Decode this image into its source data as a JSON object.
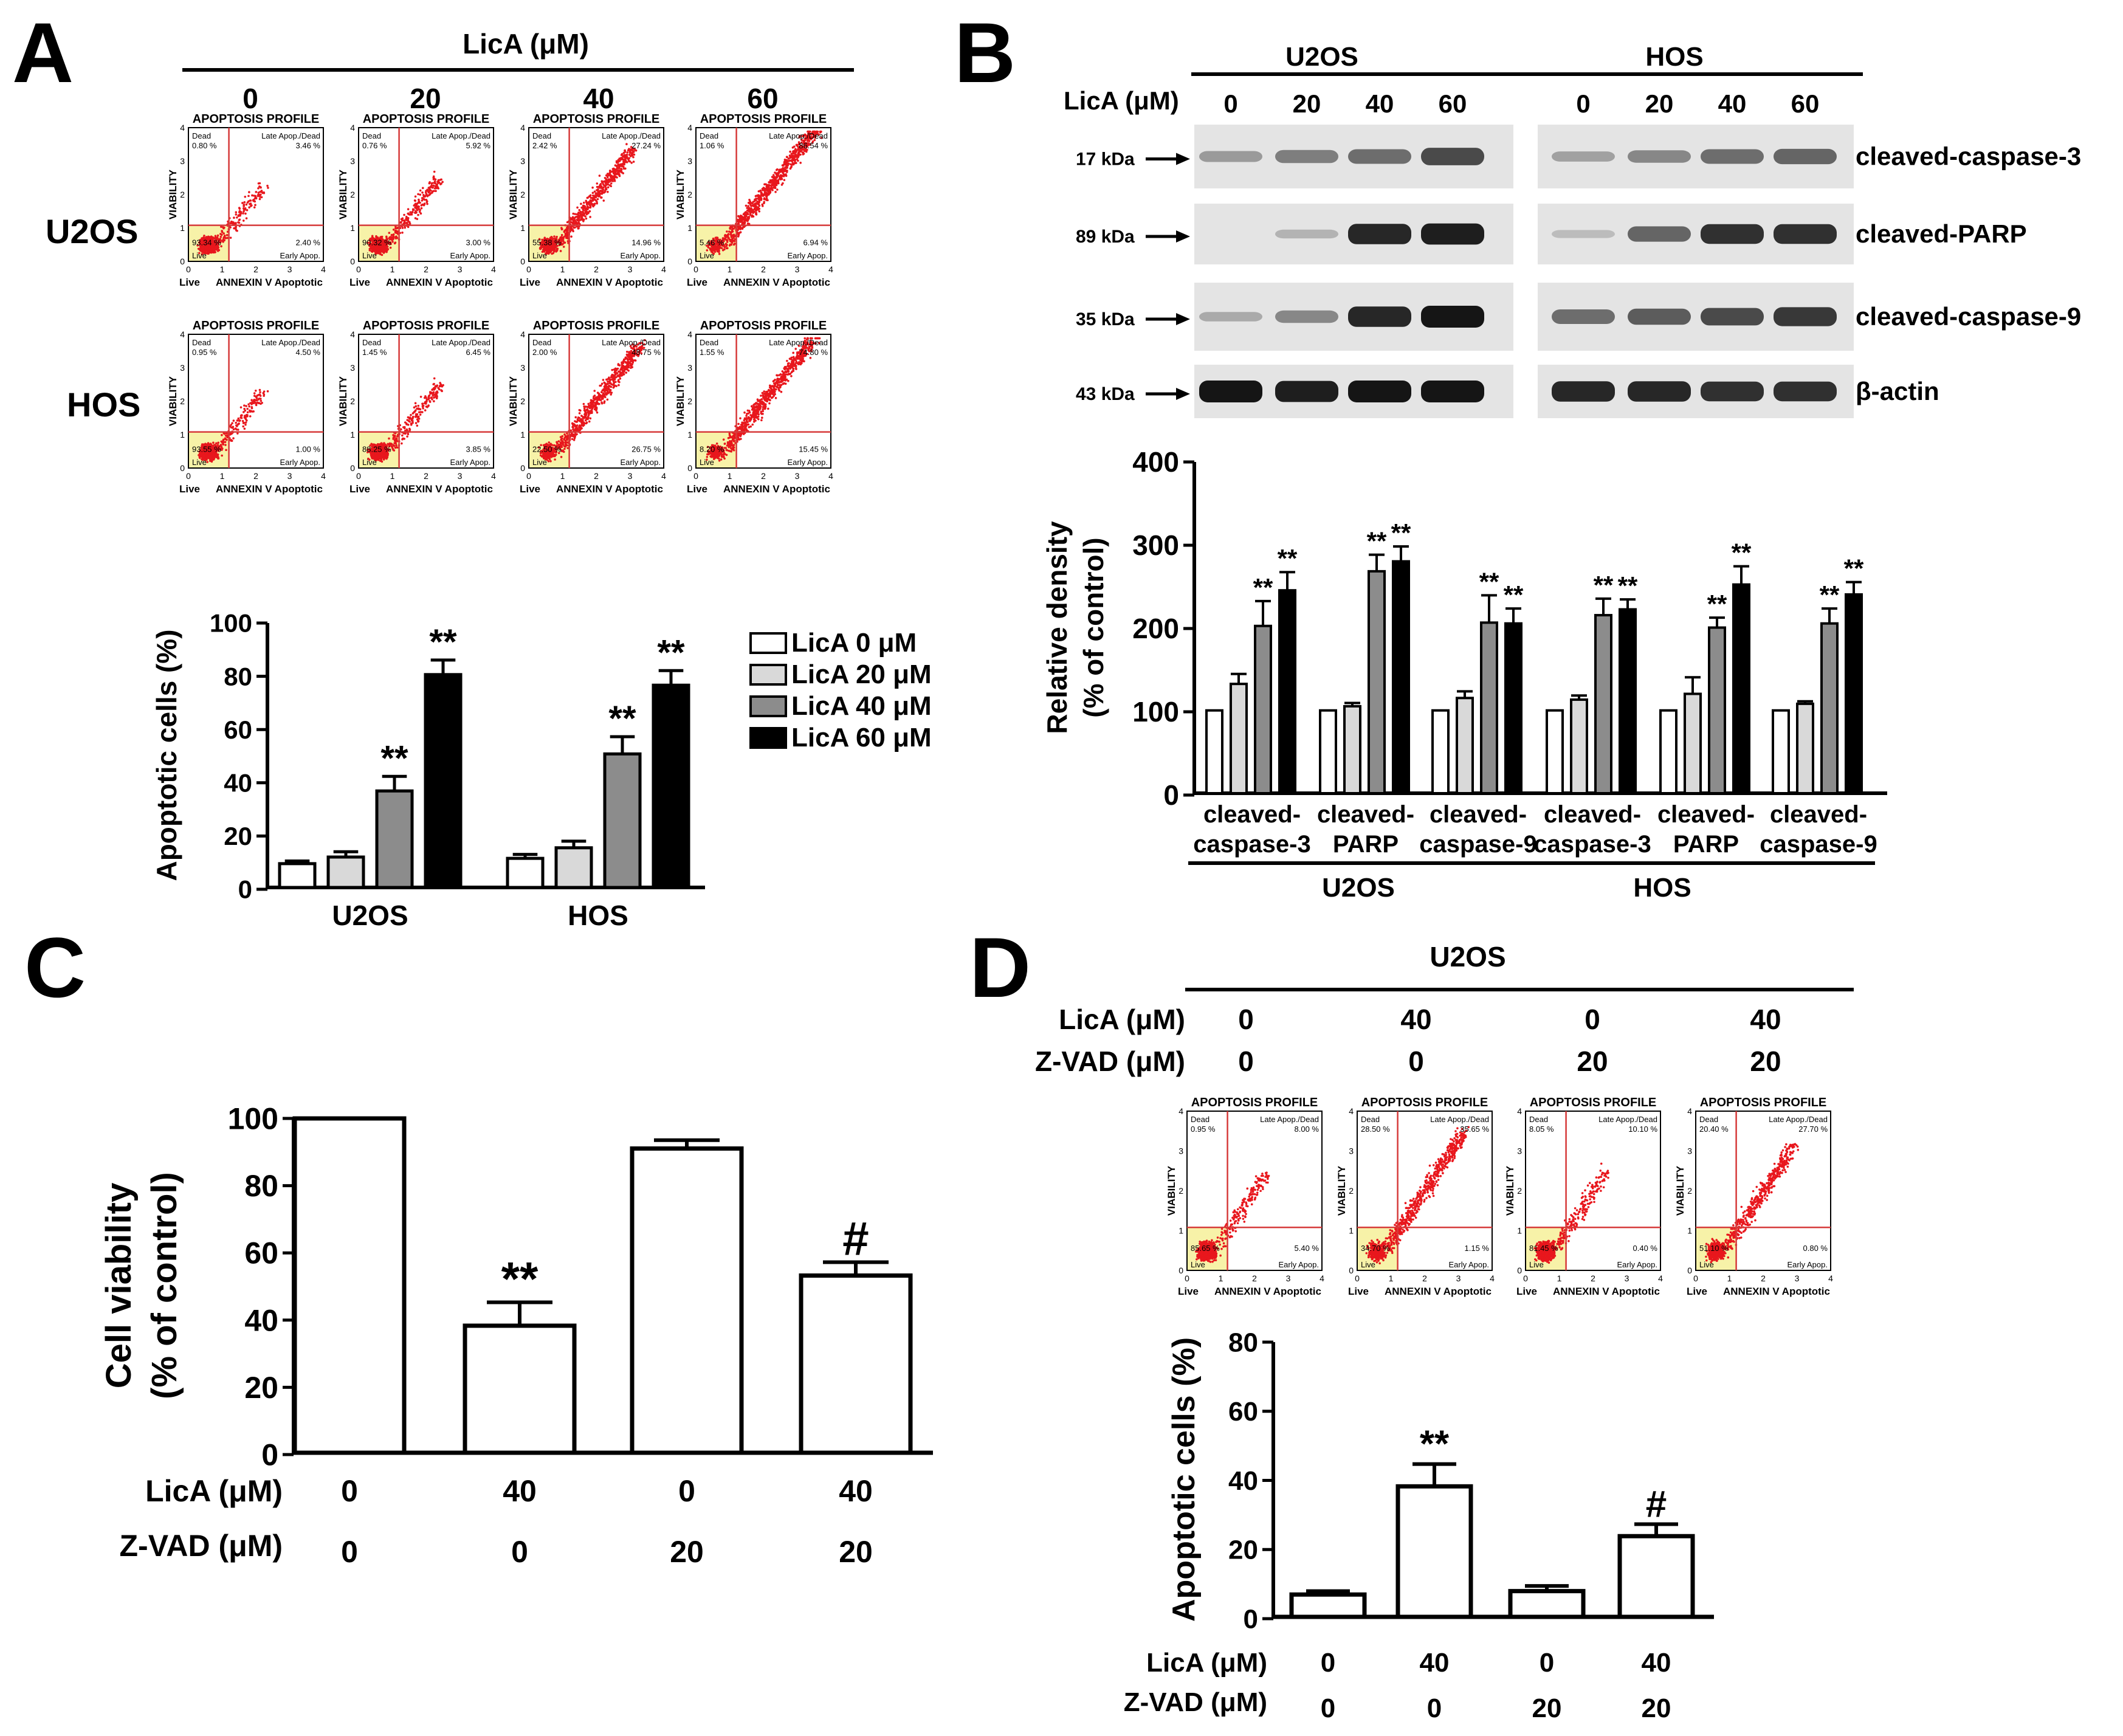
{
  "panels": {
    "A": "A",
    "B": "B",
    "C": "C",
    "D": "D"
  },
  "colors": {
    "c0": "#ffffff",
    "c20": "#d9d9d9",
    "c40": "#8c8c8c",
    "c60": "#000000",
    "dot": "#e8171d",
    "gate": "#f7f2a8",
    "quad_line": "#d63a3a",
    "band_dark": "#151515",
    "blot_bg": "#e4e4e4"
  },
  "flow_labels": {
    "profile": "APOPTOSIS PROFILE",
    "ylabel": "VIABILITY",
    "live": "Live",
    "xlabel": "ANNEXIN V Apoptotic",
    "dead": "Dead",
    "late": "Late Apop./Dead",
    "early": "Early Apop.",
    "live_q": "Live",
    "ticks": [
      "0",
      "1",
      "2",
      "3",
      "4"
    ]
  },
  "panelA": {
    "title": "LicA (μM)",
    "conc": [
      "0",
      "20",
      "40",
      "60"
    ],
    "rows": [
      "U2OS",
      "HOS"
    ],
    "flow": [
      [
        {
          "dead": "0.80 %",
          "late": "3.46 %",
          "live": "93.34 %",
          "early": "2.40 %",
          "spread": 0.2
        },
        {
          "dead": "0.76 %",
          "late": "5.92 %",
          "live": "90.32 %",
          "early": "3.00 %",
          "spread": 0.3
        },
        {
          "dead": "2.42 %",
          "late": "27.24 %",
          "live": "55.38 %",
          "early": "14.96 %",
          "spread": 0.7
        },
        {
          "dead": "1.06 %",
          "late": "86.54 %",
          "live": "5.46 %",
          "early": "6.94 %",
          "spread": 1.0
        }
      ],
      [
        {
          "dead": "0.95 %",
          "late": "4.50 %",
          "live": "93.55 %",
          "early": "1.00 %",
          "spread": 0.2
        },
        {
          "dead": "1.45 %",
          "late": "6.45 %",
          "live": "88.25 %",
          "early": "3.85 %",
          "spread": 0.3
        },
        {
          "dead": "2.00 %",
          "late": "48.75 %",
          "live": "22.50 %",
          "early": "26.75 %",
          "spread": 0.85
        },
        {
          "dead": "1.55 %",
          "late": "74.80 %",
          "live": "8.20 %",
          "early": "15.45 %",
          "spread": 0.95
        }
      ]
    ]
  },
  "chart_data": [
    {
      "id": "A-bar",
      "type": "bar",
      "ylabel": "Apoptotic cells (%)",
      "ylim": [
        0,
        100
      ],
      "yticks": [
        "0",
        "20",
        "40",
        "60",
        "80",
        "100"
      ],
      "categories": [
        "U2OS",
        "HOS"
      ],
      "series": [
        {
          "name": "LicA  0 μM",
          "values": [
            9,
            11
          ],
          "err": [
            1,
            1.5
          ]
        },
        {
          "name": "LicA 20 μM",
          "values": [
            11.5,
            15
          ],
          "err": [
            2,
            2.5
          ]
        },
        {
          "name": "LicA 40 μM",
          "values": [
            36.5,
            50.5
          ],
          "err": [
            5.5,
            6.5
          ]
        },
        {
          "name": "LicA 60 μM",
          "values": [
            80.5,
            76.5
          ],
          "err": [
            5.5,
            5.5
          ]
        }
      ],
      "annotations": [
        {
          "cat": 0,
          "series": 2,
          "text": "**"
        },
        {
          "cat": 0,
          "series": 3,
          "text": "**"
        },
        {
          "cat": 1,
          "series": 2,
          "text": "**"
        },
        {
          "cat": 1,
          "series": 3,
          "text": "**"
        }
      ],
      "legend": "top-right"
    },
    {
      "id": "B-bar",
      "type": "bar",
      "ylabel": "Relative density",
      "ylabel2": "(% of control)",
      "ylim": [
        0,
        400
      ],
      "yticks": [
        "0",
        "100",
        "200",
        "300",
        "400"
      ],
      "categories": [
        [
          "cleaved-",
          "caspase-3"
        ],
        [
          "cleaved-",
          "PARP"
        ],
        [
          "cleaved-",
          "caspase-9"
        ],
        [
          "cleaved-",
          "caspase-3"
        ],
        [
          "cleaved-",
          "PARP"
        ],
        [
          "cleaved-",
          "caspase-9"
        ]
      ],
      "groups": [
        "U2OS",
        "HOS"
      ],
      "series": [
        {
          "name": "LicA 0 μM",
          "values": [
            100,
            100,
            100,
            100,
            100,
            100
          ],
          "err": [
            0,
            0,
            0,
            0,
            0,
            0
          ]
        },
        {
          "name": "LicA 20 μM",
          "values": [
            132,
            105,
            115,
            113,
            120,
            108
          ],
          "err": [
            12,
            4,
            8,
            5,
            20,
            3
          ]
        },
        {
          "name": "LicA 40 μM",
          "values": [
            202,
            268,
            206,
            215,
            200,
            205
          ],
          "err": [
            30,
            20,
            33,
            20,
            12,
            18
          ]
        },
        {
          "name": "LicA 60 μM",
          "values": [
            245,
            280,
            205,
            222,
            252,
            240
          ],
          "err": [
            22,
            18,
            18,
            12,
            22,
            15
          ]
        }
      ],
      "annotations": [
        {
          "cat": 0,
          "series": 2,
          "text": "**"
        },
        {
          "cat": 0,
          "series": 3,
          "text": "**"
        },
        {
          "cat": 1,
          "series": 2,
          "text": "**"
        },
        {
          "cat": 1,
          "series": 3,
          "text": "**"
        },
        {
          "cat": 2,
          "series": 2,
          "text": "**"
        },
        {
          "cat": 2,
          "series": 3,
          "text": "**"
        },
        {
          "cat": 3,
          "series": 2,
          "text": "**"
        },
        {
          "cat": 3,
          "series": 3,
          "text": "**"
        },
        {
          "cat": 4,
          "series": 2,
          "text": "**"
        },
        {
          "cat": 4,
          "series": 3,
          "text": "**"
        },
        {
          "cat": 5,
          "series": 2,
          "text": "**"
        },
        {
          "cat": 5,
          "series": 3,
          "text": "**"
        }
      ]
    },
    {
      "id": "C-bar",
      "type": "bar",
      "ylabel": "Cell viability",
      "ylabel2": "(% of control)",
      "ylim": [
        0,
        100
      ],
      "yticks": [
        "0",
        "20",
        "40",
        "60",
        "80",
        "100"
      ],
      "values": [
        100,
        38,
        91,
        53
      ],
      "err": [
        0,
        7,
        2.5,
        4
      ],
      "annotations": [
        {
          "bar": 1,
          "text": "**"
        },
        {
          "bar": 3,
          "text": "#"
        }
      ],
      "row_labels": [
        "LicA (μM)",
        "Z-VAD (μM)"
      ],
      "lica": [
        "0",
        "40",
        "0",
        "40"
      ],
      "zvad": [
        "0",
        "0",
        "20",
        "20"
      ]
    },
    {
      "id": "D-bar",
      "type": "bar",
      "ylabel": "Apoptotic cells (%)",
      "ylim": [
        0,
        80
      ],
      "yticks": [
        "0",
        "20",
        "40",
        "60",
        "80"
      ],
      "values": [
        6.5,
        38,
        7.5,
        23.5
      ],
      "err": [
        1,
        6.5,
        1.5,
        3.5
      ],
      "annotations": [
        {
          "bar": 1,
          "text": "**"
        },
        {
          "bar": 3,
          "text": "#"
        }
      ],
      "row_labels": [
        "LicA (μM)",
        "Z-VAD (μM)"
      ],
      "lica": [
        "0",
        "40",
        "0",
        "40"
      ],
      "zvad": [
        "0",
        "0",
        "20",
        "20"
      ]
    }
  ],
  "panelB": {
    "cells": [
      "U2OS",
      "HOS"
    ],
    "lica_label": "LicA (μM)",
    "conc": [
      "0",
      "20",
      "40",
      "60",
      "0",
      "20",
      "40",
      "60"
    ],
    "kda": [
      "17 kDa",
      "89 kDa",
      "35 kDa",
      "43 kDa"
    ],
    "proteins": [
      "cleaved-caspase-3",
      "cleaved-PARP",
      "cleaved-caspase-9",
      "β-actin"
    ],
    "band_intensity": [
      [
        0.25,
        0.4,
        0.5,
        0.7,
        0.2,
        0.35,
        0.5,
        0.55
      ],
      [
        0.0,
        0.1,
        0.9,
        0.95,
        0.05,
        0.55,
        0.85,
        0.85
      ],
      [
        0.15,
        0.35,
        0.9,
        1.0,
        0.5,
        0.6,
        0.7,
        0.8
      ],
      [
        1.0,
        0.95,
        1.0,
        1.0,
        0.9,
        0.9,
        0.85,
        0.85
      ]
    ]
  },
  "panelD": {
    "title": "U2OS",
    "lica_label": "LicA (μM)",
    "zvad_label": "Z-VAD (μM)",
    "lica": [
      "0",
      "40",
      "0",
      "40"
    ],
    "zvad": [
      "0",
      "0",
      "20",
      "20"
    ],
    "flow": [
      {
        "dead": "0.95 %",
        "late": "8.00 %",
        "live": "85.65 %",
        "early": "5.40 %",
        "spread": 0.25
      },
      {
        "dead": "28.50 %",
        "late": "35.65 %",
        "live": "34.70 %",
        "early": "1.15 %",
        "spread": 0.75
      },
      {
        "dead": "8.05 %",
        "late": "10.10 %",
        "live": "81.45 %",
        "early": "0.40 %",
        "spread": 0.3
      },
      {
        "dead": "20.40 %",
        "late": "27.70 %",
        "live": "51.10 %",
        "early": "0.80 %",
        "spread": 0.6
      }
    ]
  }
}
